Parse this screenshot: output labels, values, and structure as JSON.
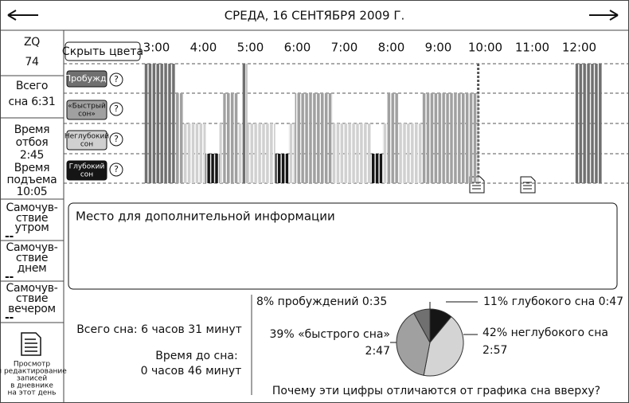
{
  "header": {
    "title": "СРЕДА, 16 СЕНТЯБРЯ 2009 Г."
  },
  "sidebar": {
    "zq_label": "ZQ",
    "zq": "74",
    "total": [
      "Всего",
      "сна 6:31"
    ],
    "bedtime": [
      "Время",
      "отбоя",
      "2:45"
    ],
    "wakeup": [
      "Время",
      "подъема",
      "10:05"
    ],
    "feelings": [
      {
        "lines": [
          "Самочув-",
          "ствие",
          "утром"
        ],
        "value": "--"
      },
      {
        "lines": [
          "Самочув-",
          "ствие",
          "днем"
        ],
        "value": "--"
      },
      {
        "lines": [
          "Самочув-",
          "ствие",
          "вечером"
        ],
        "value": "--"
      }
    ],
    "diary": [
      "Просмотр",
      "и редактирование",
      "записей",
      "в дневнике",
      "на этот день"
    ]
  },
  "graph": {
    "button": "Скрыть цвета",
    "help": "?",
    "xlim": [
      2.5,
      13
    ],
    "xticks": [
      {
        "value": 3,
        "label": "3:00"
      },
      {
        "value": 4,
        "label": "4:00"
      },
      {
        "value": 5,
        "label": "5:00"
      },
      {
        "value": 6,
        "label": "6:00"
      },
      {
        "value": 7,
        "label": "7:00"
      },
      {
        "value": 8,
        "label": "8:00"
      },
      {
        "value": 9,
        "label": "9:00"
      },
      {
        "value": 10,
        "label": "10:00"
      },
      {
        "value": 11,
        "label": "11:00"
      },
      {
        "value": 12,
        "label": "12:00"
      }
    ],
    "stages": [
      {
        "lines": [
          "Пробужд."
        ],
        "color": "#707070"
      },
      {
        "lines": [
          "«Быстрый",
          "сон»"
        ],
        "color": "#a0a0a0"
      },
      {
        "lines": [
          "Неглубокий",
          "сон"
        ],
        "color": "#d0d0d0"
      },
      {
        "lines": [
          "Глубокий",
          "сон"
        ],
        "color": "#151515"
      }
    ],
    "segments": [
      {
        "start": 2.73,
        "end": 3.41,
        "row": 0
      },
      {
        "start": 3.41,
        "end": 3.58,
        "row": 1
      },
      {
        "start": 3.58,
        "end": 4.05,
        "row": 2
      },
      {
        "start": 4.05,
        "end": 4.34,
        "row": 3
      },
      {
        "start": 4.34,
        "end": 4.42,
        "row": 2
      },
      {
        "start": 4.42,
        "end": 4.73,
        "row": 1
      },
      {
        "start": 4.73,
        "end": 4.83,
        "row": 2
      },
      {
        "start": 4.83,
        "end": 4.93,
        "row": 0
      },
      {
        "start": 4.93,
        "end": 5.53,
        "row": 2
      },
      {
        "start": 5.53,
        "end": 5.81,
        "row": 3
      },
      {
        "start": 5.81,
        "end": 5.95,
        "row": 2
      },
      {
        "start": 5.95,
        "end": 6.75,
        "row": 1
      },
      {
        "start": 6.75,
        "end": 7.56,
        "row": 2
      },
      {
        "start": 7.56,
        "end": 7.81,
        "row": 3
      },
      {
        "start": 7.81,
        "end": 7.9,
        "row": 2
      },
      {
        "start": 7.9,
        "end": 8.15,
        "row": 1
      },
      {
        "start": 8.15,
        "end": 8.66,
        "row": 2
      },
      {
        "start": 8.66,
        "end": 9.85,
        "row": 1
      },
      {
        "start": 11.92,
        "end": 12.49,
        "row": 0
      }
    ],
    "marker": 9.85
  },
  "info": "Место для дополнительной информации",
  "summary": {
    "total": "Всего сна: 6 часов 31 минут",
    "latency_label": "Время до сна:",
    "latency": "0 часов 46 минут",
    "question": "Почему эти цифры отличаются от графика сна вверху?"
  },
  "pie": {
    "slices": [
      {
        "value": 11,
        "label": "11% глубокого сна 0:47",
        "color": "#151515"
      },
      {
        "value": 42,
        "label": "42% неглубокого сна",
        "time": "2:57",
        "color": "#d4d4d4"
      },
      {
        "value": 39,
        "label": "39% «быстрого сна»",
        "time": "2:47",
        "color": "#a0a0a0"
      },
      {
        "value": 8,
        "label": "8% пробуждений 0:35",
        "color": "#707070"
      }
    ]
  }
}
